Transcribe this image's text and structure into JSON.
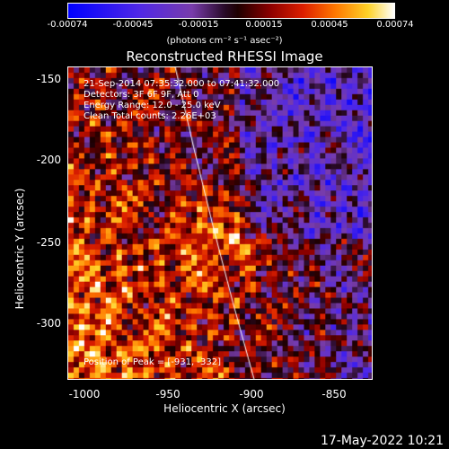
{
  "colorbar": {
    "ticks": [
      "-0.00074",
      "-0.00045",
      "-0.00015",
      "0.00015",
      "0.00045",
      "0.00074"
    ],
    "units": "(photons cm⁻² s⁻¹ asec⁻²)"
  },
  "title": "Reconstructed RHESSI Image",
  "info": {
    "line1": "21-Sep-2014 07:35:32.000 to 07:41:32.000",
    "line2": "Detectors: 3F 6F 9F, Att 0",
    "line3": "Energy Range: 12.0 - 25.0 keV",
    "line4": "Clean     Total counts: 2.26E+03",
    "peak": "Position of Peak = [-931, -332]"
  },
  "axes": {
    "ylabel": "Heliocentric Y (arcsec)",
    "xlabel": "Heliocentric X (arcsec)",
    "yticks": [
      "-150",
      "-200",
      "-250",
      "-300"
    ],
    "xticks": [
      "-1000",
      "-950",
      "-900",
      "-850"
    ]
  },
  "footer": "17-May-2022 10:21"
}
